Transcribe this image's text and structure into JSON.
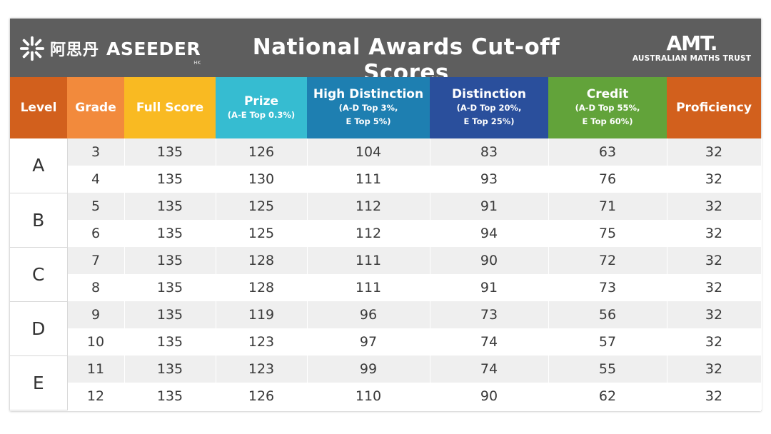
{
  "banner": {
    "logo_cn": "阿思丹",
    "logo_name": "ASEEDER",
    "logo_hk": "HK",
    "title": "National Awards Cut-off Scores",
    "amt_mark": "AMT.",
    "amt_full": "AUSTRALIAN MATHS TRUST"
  },
  "headers": [
    {
      "key": "level",
      "label": "Level",
      "sub": [],
      "color": "#d2601d"
    },
    {
      "key": "grade",
      "label": "Grade",
      "sub": [],
      "color": "#f28a3c"
    },
    {
      "key": "full",
      "label": "Full Score",
      "sub": [],
      "color": "#f9ba22"
    },
    {
      "key": "prize",
      "label": "Prize",
      "sub": [
        "(A-E Top 0.3%)"
      ],
      "color": "#36bcd1"
    },
    {
      "key": "hd",
      "label": "High Distinction",
      "sub": [
        "(A-D Top 3%,",
        "E Top 5%)"
      ],
      "color": "#1e7fb1"
    },
    {
      "key": "dist",
      "label": "Distinction",
      "sub": [
        "(A-D Top 20%,",
        "E Top 25%)"
      ],
      "color": "#2a4f9c"
    },
    {
      "key": "credit",
      "label": "Credit",
      "sub": [
        "(A-D Top 55%,",
        "E Top 60%)"
      ],
      "color": "#62a33a"
    },
    {
      "key": "prof",
      "label": "Proficiency",
      "sub": [],
      "color": "#d2601d"
    }
  ],
  "levels": [
    {
      "level": "A",
      "rows": [
        {
          "grade": "3",
          "full": "135",
          "prize": "126",
          "hd": "104",
          "dist": "83",
          "credit": "63",
          "prof": "32"
        },
        {
          "grade": "4",
          "full": "135",
          "prize": "130",
          "hd": "111",
          "dist": "93",
          "credit": "76",
          "prof": "32"
        }
      ]
    },
    {
      "level": "B",
      "rows": [
        {
          "grade": "5",
          "full": "135",
          "prize": "125",
          "hd": "112",
          "dist": "91",
          "credit": "71",
          "prof": "32"
        },
        {
          "grade": "6",
          "full": "135",
          "prize": "125",
          "hd": "112",
          "dist": "94",
          "credit": "75",
          "prof": "32"
        }
      ]
    },
    {
      "level": "C",
      "rows": [
        {
          "grade": "7",
          "full": "135",
          "prize": "128",
          "hd": "111",
          "dist": "90",
          "credit": "72",
          "prof": "32"
        },
        {
          "grade": "8",
          "full": "135",
          "prize": "128",
          "hd": "111",
          "dist": "91",
          "credit": "73",
          "prof": "32"
        }
      ]
    },
    {
      "level": "D",
      "rows": [
        {
          "grade": "9",
          "full": "135",
          "prize": "119",
          "hd": "96",
          "dist": "73",
          "credit": "56",
          "prof": "32"
        },
        {
          "grade": "10",
          "full": "135",
          "prize": "123",
          "hd": "97",
          "dist": "74",
          "credit": "57",
          "prof": "32"
        }
      ]
    },
    {
      "level": "E",
      "rows": [
        {
          "grade": "11",
          "full": "135",
          "prize": "123",
          "hd": "99",
          "dist": "74",
          "credit": "55",
          "prof": "32"
        },
        {
          "grade": "12",
          "full": "135",
          "prize": "126",
          "hd": "110",
          "dist": "90",
          "credit": "62",
          "prof": "32"
        }
      ]
    }
  ],
  "colors": {
    "banner": "#5e5e5e",
    "row_shade": "#efefef"
  }
}
